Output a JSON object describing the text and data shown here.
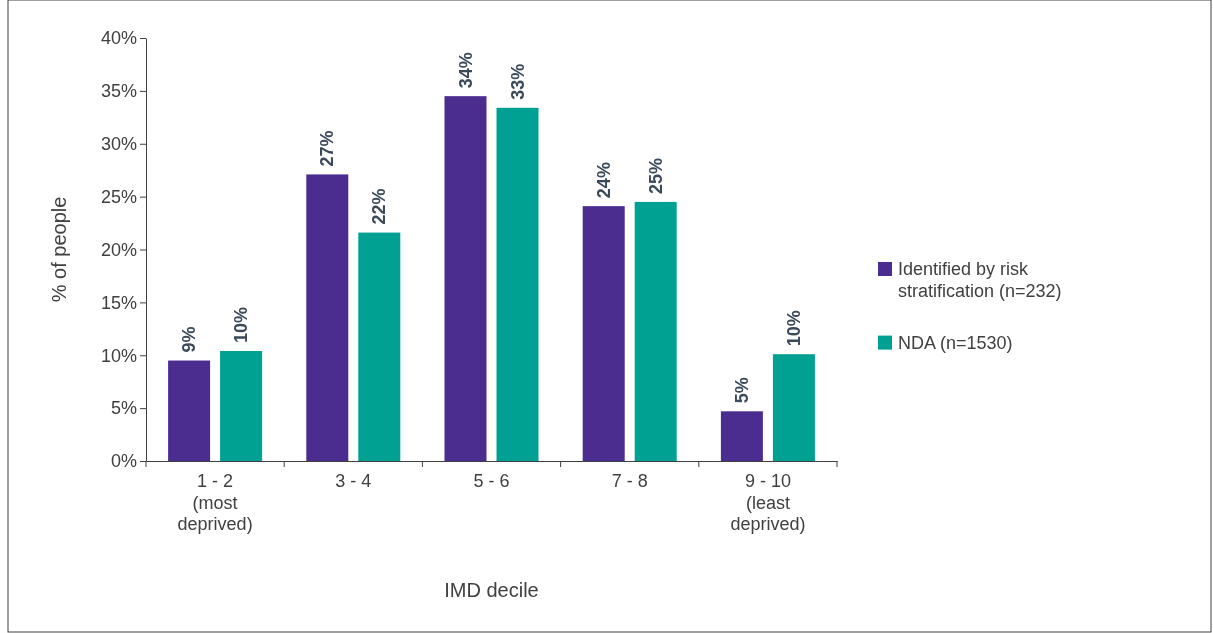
{
  "chart_data": {
    "type": "bar",
    "xlabel": "IMD decile",
    "ylabel": "% of people",
    "categories": [
      "1 - 2 (most deprived)",
      "3 - 4",
      "5 - 6",
      "7 - 8",
      "9 - 10 (least deprived)"
    ],
    "series": [
      {
        "name": "Identified by risk stratification (n=232)",
        "color": "#4b2d8f",
        "values": [
          9.5,
          27.1,
          34.5,
          24.1,
          4.7
        ],
        "value_labels": [
          "9%",
          "27%",
          "34%",
          "24%",
          "5%"
        ]
      },
      {
        "name": "NDA (n=1530)",
        "color": "#00a192",
        "values": [
          10.4,
          21.6,
          33.4,
          24.5,
          10.1
        ],
        "value_labels": [
          "10%",
          "22%",
          "33%",
          "25%",
          "10%"
        ]
      }
    ],
    "ylim": [
      0,
      40
    ],
    "yticks": [
      {
        "value": 0,
        "label": "0%"
      },
      {
        "value": 5,
        "label": "5%"
      },
      {
        "value": 10,
        "label": "10%"
      },
      {
        "value": 15,
        "label": "15%"
      },
      {
        "value": 20,
        "label": "20%"
      },
      {
        "value": 25,
        "label": "25%"
      },
      {
        "value": 30,
        "label": "30%"
      },
      {
        "value": 35,
        "label": "35%"
      },
      {
        "value": 40,
        "label": "40%"
      }
    ],
    "legend": "right"
  }
}
